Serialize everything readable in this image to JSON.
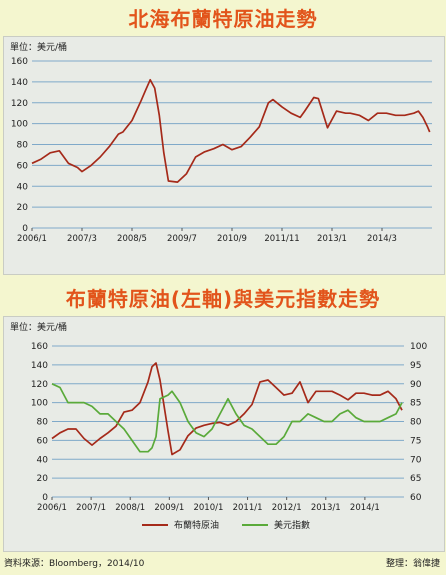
{
  "chart1": {
    "title": "北海布蘭特原油走勢",
    "unit": "單位：美元/桶",
    "chart_data": {
      "type": "line",
      "title": "北海布蘭特原油走勢",
      "ylabel": "單位：美元/桶",
      "ylim": [
        0,
        160
      ],
      "yticks": [
        0,
        20,
        40,
        60,
        80,
        100,
        120,
        140,
        160
      ],
      "xticks": [
        "2006/1",
        "2007/3",
        "2008/5",
        "2009/7",
        "2010/9",
        "2011/11",
        "2013/1",
        "2014/3"
      ],
      "xlim": [
        2006.0,
        2014.8
      ],
      "grid": true,
      "color": "#a52a1a",
      "x": [
        2006.0,
        2006.2,
        2006.4,
        2006.6,
        2006.8,
        2007.0,
        2007.1,
        2007.3,
        2007.5,
        2007.7,
        2007.9,
        2008.0,
        2008.2,
        2008.4,
        2008.5,
        2008.6,
        2008.7,
        2008.8,
        2008.9,
        2009.0,
        2009.2,
        2009.4,
        2009.6,
        2009.8,
        2010.0,
        2010.2,
        2010.4,
        2010.6,
        2010.8,
        2011.0,
        2011.2,
        2011.3,
        2011.5,
        2011.7,
        2011.9,
        2012.0,
        2012.2,
        2012.3,
        2012.5,
        2012.7,
        2012.9,
        2013.0,
        2013.2,
        2013.4,
        2013.6,
        2013.8,
        2014.0,
        2014.2,
        2014.4,
        2014.5,
        2014.6,
        2014.7,
        2014.75
      ],
      "y": [
        62,
        66,
        72,
        74,
        62,
        58,
        54,
        60,
        68,
        78,
        90,
        92,
        103,
        122,
        132,
        142,
        134,
        108,
        72,
        45,
        44,
        52,
        68,
        73,
        76,
        80,
        75,
        78,
        87,
        97,
        120,
        123,
        116,
        110,
        106,
        112,
        125,
        124,
        96,
        112,
        110,
        110,
        108,
        103,
        110,
        110,
        108,
        108,
        110,
        112,
        106,
        97,
        92
      ]
    }
  },
  "chart2": {
    "title": "布蘭特原油(左軸)與美元指數走勢",
    "unit": "單位：美元/桶",
    "chart_data": {
      "type": "line",
      "title": "布蘭特原油(左軸)與美元指數走勢",
      "ylabel": "單位：美元/桶",
      "ylim": [
        0,
        160
      ],
      "yticks": [
        0,
        20,
        40,
        60,
        80,
        100,
        120,
        140,
        160
      ],
      "y2lim": [
        60,
        100
      ],
      "y2ticks": [
        60,
        65,
        70,
        75,
        80,
        85,
        90,
        95,
        100
      ],
      "xticks": [
        "2006/1",
        "2007/1",
        "2008/1",
        "2009/1",
        "2010/1",
        "2011/1",
        "2012/1",
        "2013/1",
        "2014/1"
      ],
      "xlim": [
        2006.0,
        2014.8
      ],
      "grid": true,
      "x": [
        2006.0,
        2006.2,
        2006.4,
        2006.6,
        2006.8,
        2007.0,
        2007.2,
        2007.4,
        2007.6,
        2007.8,
        2008.0,
        2008.2,
        2008.4,
        2008.5,
        2008.6,
        2008.7,
        2008.9,
        2009.0,
        2009.2,
        2009.4,
        2009.6,
        2009.8,
        2010.0,
        2010.2,
        2010.4,
        2010.6,
        2010.8,
        2011.0,
        2011.2,
        2011.4,
        2011.6,
        2011.8,
        2012.0,
        2012.2,
        2012.4,
        2012.6,
        2012.8,
        2013.0,
        2013.2,
        2013.4,
        2013.6,
        2013.8,
        2014.0,
        2014.2,
        2014.4,
        2014.6,
        2014.75
      ],
      "series": [
        {
          "name": "布蘭特原油",
          "axis": "left",
          "color": "#a52a1a",
          "values": [
            62,
            68,
            72,
            72,
            62,
            55,
            62,
            68,
            75,
            90,
            92,
            100,
            122,
            138,
            142,
            124,
            70,
            45,
            50,
            65,
            73,
            76,
            78,
            79,
            76,
            80,
            88,
            98,
            122,
            124,
            116,
            108,
            110,
            122,
            100,
            112,
            112,
            112,
            108,
            103,
            110,
            110,
            108,
            108,
            112,
            104,
            92
          ]
        },
        {
          "name": "美元指數",
          "axis": "right",
          "color": "#5aaa3a",
          "values": [
            90,
            89,
            85,
            85,
            85,
            84,
            82,
            82,
            80,
            78,
            75,
            72,
            72,
            73,
            76,
            86,
            87,
            88,
            85,
            80,
            77,
            76,
            78,
            82,
            86,
            82,
            79,
            78,
            76,
            74,
            74,
            76,
            80,
            80,
            82,
            81,
            80,
            80,
            82,
            83,
            81,
            80,
            80,
            80,
            81,
            82,
            85
          ]
        }
      ],
      "legend": "bottom"
    }
  },
  "footer": {
    "source": "資料來源：Bloomberg，2014/10",
    "editor": "整理：翁偉捷"
  }
}
